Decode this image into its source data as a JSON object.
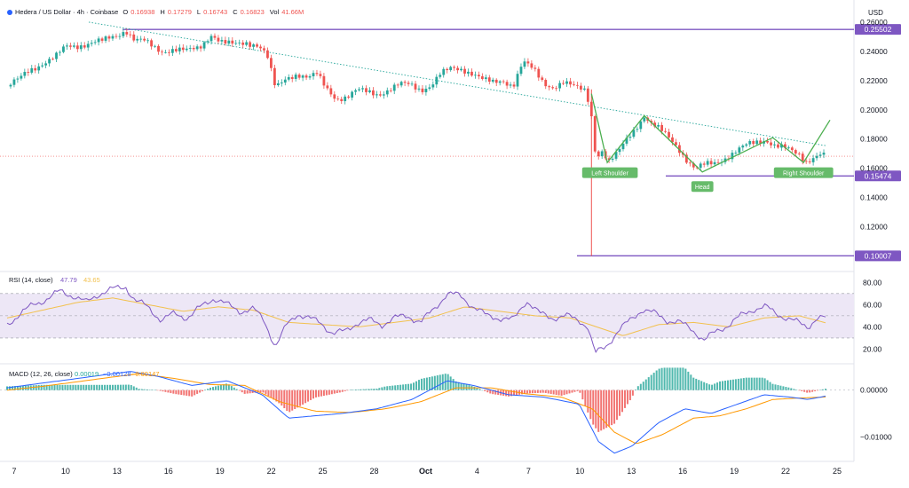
{
  "header": {
    "title": "Hedera / US Dollar · 4h · Coinbase",
    "ohlc": [
      {
        "k": "O",
        "v": "0.16938"
      },
      {
        "k": "H",
        "v": "0.17279"
      },
      {
        "k": "L",
        "v": "0.16743"
      },
      {
        "k": "C",
        "v": "0.16823"
      },
      {
        "k": "Vol",
        "v": "41.66M"
      }
    ],
    "currency": "USD"
  },
  "colors": {
    "up": "#26a69a",
    "down": "#ef5350",
    "level": "#7e57c2",
    "trend": "#4caf50",
    "rsi": "#7e57c2",
    "rsi_ma": "#f2c14e",
    "macd": "#2962ff",
    "signal": "#ff9800",
    "hist_up": "#26a69a",
    "hist_down": "#ef5350",
    "rsi_band": "#ede7f6"
  },
  "chart_data": [
    {
      "type": "candlestick",
      "title": "Hedera / US Dollar",
      "x_ticks": [
        "7",
        "10",
        "13",
        "16",
        "19",
        "22",
        "25",
        "28",
        "Oct",
        "4",
        "7",
        "10",
        "13",
        "16",
        "19",
        "22",
        "25"
      ],
      "ylim": [
        0.093,
        0.263
      ],
      "y_ticks": [
        "0.26000",
        "0.24000",
        "0.22000",
        "0.20000",
        "0.18000",
        "0.16000",
        "0.14000",
        "0.12000"
      ],
      "levels": [
        {
          "value": 0.25502,
          "label": "0.25502"
        },
        {
          "value": 0.15474,
          "label": "0.15474"
        },
        {
          "value": 0.10007,
          "label": "0.10007"
        }
      ],
      "last_price": 0.16823,
      "annotations": [
        "Left Shoulder",
        "Head",
        "Right Shoulder"
      ],
      "price_path": [
        [
          0,
          0.216
        ],
        [
          12,
          0.22
        ],
        [
          25,
          0.227
        ],
        [
          40,
          0.232
        ],
        [
          55,
          0.236
        ],
        [
          67,
          0.243
        ],
        [
          80,
          0.244
        ],
        [
          95,
          0.246
        ],
        [
          110,
          0.247
        ],
        [
          125,
          0.251
        ],
        [
          135,
          0.255
        ],
        [
          145,
          0.248
        ],
        [
          155,
          0.247
        ],
        [
          165,
          0.243
        ],
        [
          175,
          0.24
        ],
        [
          190,
          0.242
        ],
        [
          205,
          0.24
        ],
        [
          218,
          0.242
        ],
        [
          232,
          0.252
        ],
        [
          245,
          0.246
        ],
        [
          258,
          0.244
        ],
        [
          272,
          0.246
        ],
        [
          285,
          0.245
        ],
        [
          295,
          0.238
        ],
        [
          305,
          0.214
        ],
        [
          318,
          0.222
        ],
        [
          330,
          0.225
        ],
        [
          342,
          0.222
        ],
        [
          352,
          0.224
        ],
        [
          362,
          0.215
        ],
        [
          374,
          0.208
        ],
        [
          386,
          0.209
        ],
        [
          398,
          0.213
        ],
        [
          410,
          0.212
        ],
        [
          422,
          0.211
        ],
        [
          434,
          0.214
        ],
        [
          446,
          0.217
        ],
        [
          458,
          0.217
        ],
        [
          470,
          0.214
        ],
        [
          482,
          0.217
        ],
        [
          492,
          0.224
        ],
        [
          505,
          0.228
        ],
        [
          518,
          0.228
        ],
        [
          530,
          0.225
        ],
        [
          542,
          0.22
        ],
        [
          553,
          0.218
        ],
        [
          563,
          0.22
        ],
        [
          575,
          0.217
        ],
        [
          586,
          0.233
        ],
        [
          598,
          0.227
        ],
        [
          610,
          0.218
        ],
        [
          620,
          0.216
        ],
        [
          632,
          0.219
        ],
        [
          645,
          0.215
        ],
        [
          658,
          0.213
        ],
        [
          664,
          0.196
        ],
        [
          669,
          0.168
        ],
        [
          676,
          0.172
        ],
        [
          684,
          0.164
        ],
        [
          694,
          0.17
        ],
        [
          704,
          0.18
        ],
        [
          714,
          0.188
        ],
        [
          724,
          0.196
        ],
        [
          732,
          0.19
        ],
        [
          742,
          0.186
        ],
        [
          752,
          0.181
        ],
        [
          762,
          0.175
        ],
        [
          772,
          0.166
        ],
        [
          782,
          0.159
        ],
        [
          792,
          0.162
        ],
        [
          805,
          0.164
        ],
        [
          818,
          0.168
        ],
        [
          830,
          0.172
        ],
        [
          842,
          0.176
        ],
        [
          852,
          0.178
        ],
        [
          862,
          0.18
        ],
        [
          872,
          0.176
        ],
        [
          882,
          0.174
        ],
        [
          892,
          0.171
        ],
        [
          900,
          0.169
        ],
        [
          908,
          0.165
        ],
        [
          916,
          0.168
        ],
        [
          924,
          0.17
        ],
        [
          930,
          0.1682
        ]
      ],
      "wicks": [
        [
          664,
          0.1,
          0.214
        ]
      ]
    },
    {
      "type": "line",
      "title": "RSI (14, close)",
      "series": [
        {
          "name": "RSI",
          "value_label": "47.79"
        },
        {
          "name": "RSI-based MA",
          "value_label": "43.65"
        }
      ],
      "ylim": [
        10,
        85
      ],
      "y_ticks": [
        "80.00",
        "60.00",
        "40.00",
        "20.00"
      ],
      "band": [
        30,
        70
      ],
      "rsi_path": [
        [
          0,
          42
        ],
        [
          15,
          52
        ],
        [
          30,
          60
        ],
        [
          45,
          65
        ],
        [
          60,
          72
        ],
        [
          75,
          68
        ],
        [
          90,
          62
        ],
        [
          105,
          70
        ],
        [
          120,
          74
        ],
        [
          135,
          76
        ],
        [
          145,
          64
        ],
        [
          160,
          58
        ],
        [
          175,
          46
        ],
        [
          190,
          52
        ],
        [
          205,
          48
        ],
        [
          220,
          58
        ],
        [
          235,
          66
        ],
        [
          250,
          60
        ],
        [
          265,
          54
        ],
        [
          280,
          56
        ],
        [
          292,
          46
        ],
        [
          305,
          22
        ],
        [
          318,
          42
        ],
        [
          330,
          52
        ],
        [
          342,
          48
        ],
        [
          356,
          44
        ],
        [
          370,
          34
        ],
        [
          384,
          36
        ],
        [
          398,
          44
        ],
        [
          412,
          46
        ],
        [
          426,
          42
        ],
        [
          440,
          48
        ],
        [
          455,
          50
        ],
        [
          470,
          44
        ],
        [
          485,
          56
        ],
        [
          500,
          70
        ],
        [
          515,
          68
        ],
        [
          530,
          58
        ],
        [
          545,
          50
        ],
        [
          560,
          48
        ],
        [
          575,
          46
        ],
        [
          590,
          64
        ],
        [
          605,
          52
        ],
        [
          620,
          48
        ],
        [
          635,
          50
        ],
        [
          650,
          46
        ],
        [
          660,
          40
        ],
        [
          668,
          16
        ],
        [
          680,
          22
        ],
        [
          694,
          36
        ],
        [
          708,
          46
        ],
        [
          722,
          56
        ],
        [
          736,
          52
        ],
        [
          750,
          46
        ],
        [
          764,
          44
        ],
        [
          778,
          38
        ],
        [
          792,
          28
        ],
        [
          806,
          36
        ],
        [
          820,
          42
        ],
        [
          834,
          50
        ],
        [
          848,
          56
        ],
        [
          862,
          58
        ],
        [
          874,
          52
        ],
        [
          886,
          48
        ],
        [
          898,
          44
        ],
        [
          910,
          40
        ],
        [
          920,
          48
        ],
        [
          930,
          47.79
        ]
      ],
      "ma_path": [
        [
          0,
          48
        ],
        [
          40,
          55
        ],
        [
          80,
          62
        ],
        [
          120,
          66
        ],
        [
          160,
          60
        ],
        [
          200,
          54
        ],
        [
          240,
          58
        ],
        [
          280,
          55
        ],
        [
          320,
          44
        ],
        [
          360,
          42
        ],
        [
          400,
          40
        ],
        [
          440,
          44
        ],
        [
          480,
          48
        ],
        [
          520,
          58
        ],
        [
          560,
          54
        ],
        [
          600,
          50
        ],
        [
          640,
          48
        ],
        [
          670,
          40
        ],
        [
          700,
          32
        ],
        [
          740,
          42
        ],
        [
          780,
          44
        ],
        [
          820,
          40
        ],
        [
          860,
          48
        ],
        [
          900,
          50
        ],
        [
          930,
          43.65
        ]
      ]
    },
    {
      "type": "line",
      "title": "MACD (12, 26, close)",
      "series": [
        {
          "name": "Histogram",
          "value_label": "0.00019"
        },
        {
          "name": "MACD",
          "value_label": "−0.00128"
        },
        {
          "name": "Signal",
          "value_label": "−0.00147"
        }
      ],
      "ylim": [
        -0.0145,
        0.0045
      ],
      "y_ticks": [
        "0.00000",
        "−0.01000"
      ],
      "macd_path": [
        [
          0,
          0.0005
        ],
        [
          40,
          0.0015
        ],
        [
          80,
          0.0025
        ],
        [
          120,
          0.0035
        ],
        [
          140,
          0.004
        ],
        [
          170,
          0.003
        ],
        [
          210,
          0.001
        ],
        [
          250,
          0.002
        ],
        [
          290,
          -0.001
        ],
        [
          320,
          -0.006
        ],
        [
          350,
          -0.0055
        ],
        [
          380,
          -0.005
        ],
        [
          420,
          -0.004
        ],
        [
          460,
          -0.002
        ],
        [
          500,
          0.002
        ],
        [
          530,
          0.001
        ],
        [
          570,
          -0.001
        ],
        [
          610,
          -0.0015
        ],
        [
          650,
          -0.003
        ],
        [
          672,
          -0.011
        ],
        [
          690,
          -0.0135
        ],
        [
          710,
          -0.012
        ],
        [
          740,
          -0.007
        ],
        [
          770,
          -0.004
        ],
        [
          800,
          -0.005
        ],
        [
          830,
          -0.003
        ],
        [
          860,
          -0.001
        ],
        [
          890,
          -0.0015
        ],
        [
          910,
          -0.002
        ],
        [
          930,
          -0.00128
        ]
      ],
      "signal_path": [
        [
          0,
          0.0
        ],
        [
          40,
          0.0008
        ],
        [
          80,
          0.0018
        ],
        [
          120,
          0.0028
        ],
        [
          150,
          0.0035
        ],
        [
          190,
          0.0025
        ],
        [
          230,
          0.0012
        ],
        [
          270,
          0.001
        ],
        [
          310,
          -0.0025
        ],
        [
          350,
          -0.0045
        ],
        [
          390,
          -0.0048
        ],
        [
          430,
          -0.004
        ],
        [
          470,
          -0.0025
        ],
        [
          510,
          0.0005
        ],
        [
          550,
          0.0005
        ],
        [
          590,
          -0.0008
        ],
        [
          630,
          -0.0015
        ],
        [
          665,
          -0.004
        ],
        [
          690,
          -0.009
        ],
        [
          715,
          -0.0115
        ],
        [
          745,
          -0.0095
        ],
        [
          780,
          -0.006
        ],
        [
          810,
          -0.0055
        ],
        [
          840,
          -0.004
        ],
        [
          870,
          -0.002
        ],
        [
          900,
          -0.0017
        ],
        [
          930,
          -0.00147
        ]
      ]
    }
  ]
}
